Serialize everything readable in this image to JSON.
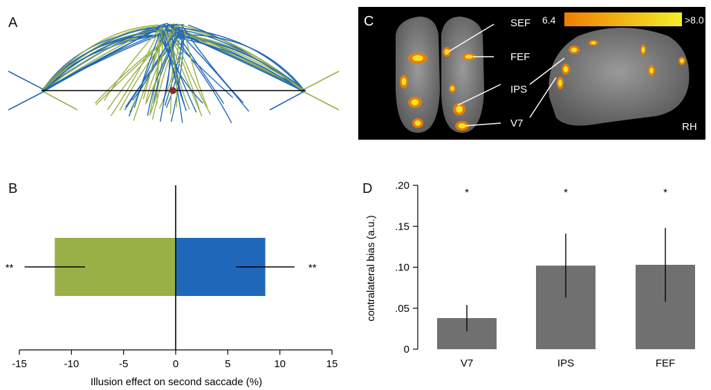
{
  "panels": {
    "a": {
      "letter": "A"
    },
    "b": {
      "letter": "B"
    },
    "c": {
      "letter": "C"
    },
    "d": {
      "letter": "D"
    }
  },
  "colors": {
    "green": "#98b045",
    "blue": "#1f67b8",
    "gray": "#707070",
    "dot": "#8b2a2a",
    "colorbar_low": "#f07e00",
    "colorbar_high": "#f2ee2a"
  },
  "brain": {
    "labels": [
      "SEF",
      "FEF",
      "IPS",
      "V7"
    ],
    "hemisphere": "RH",
    "colorbar_min": "6.4",
    "colorbar_max": ">8.0"
  },
  "chart_data": [
    {
      "id": "B",
      "type": "bar",
      "orientation": "horizontal",
      "xlabel": "Illusion effect on second saccade (%)",
      "xlim": [
        -15,
        15
      ],
      "xticks": [
        "-15",
        "-10",
        "-5",
        "0",
        "5",
        "10",
        "15"
      ],
      "bars": [
        {
          "value": -11.6,
          "error": 2.9,
          "color": "green",
          "significance": "**"
        },
        {
          "value": 8.6,
          "error": 2.8,
          "color": "blue",
          "significance": "**"
        }
      ]
    },
    {
      "id": "D",
      "type": "bar",
      "categories": [
        "V7",
        "IPS",
        "FEF"
      ],
      "values": [
        0.038,
        0.102,
        0.103
      ],
      "errors": [
        0.016,
        0.039,
        0.045
      ],
      "significance": [
        "*",
        "*",
        "*"
      ],
      "ylabel": "contralateral bias (a.u.)",
      "ylim": [
        0,
        0.2
      ],
      "yticks": [
        "0",
        ".05",
        ".10",
        ".15",
        ".20"
      ]
    }
  ]
}
